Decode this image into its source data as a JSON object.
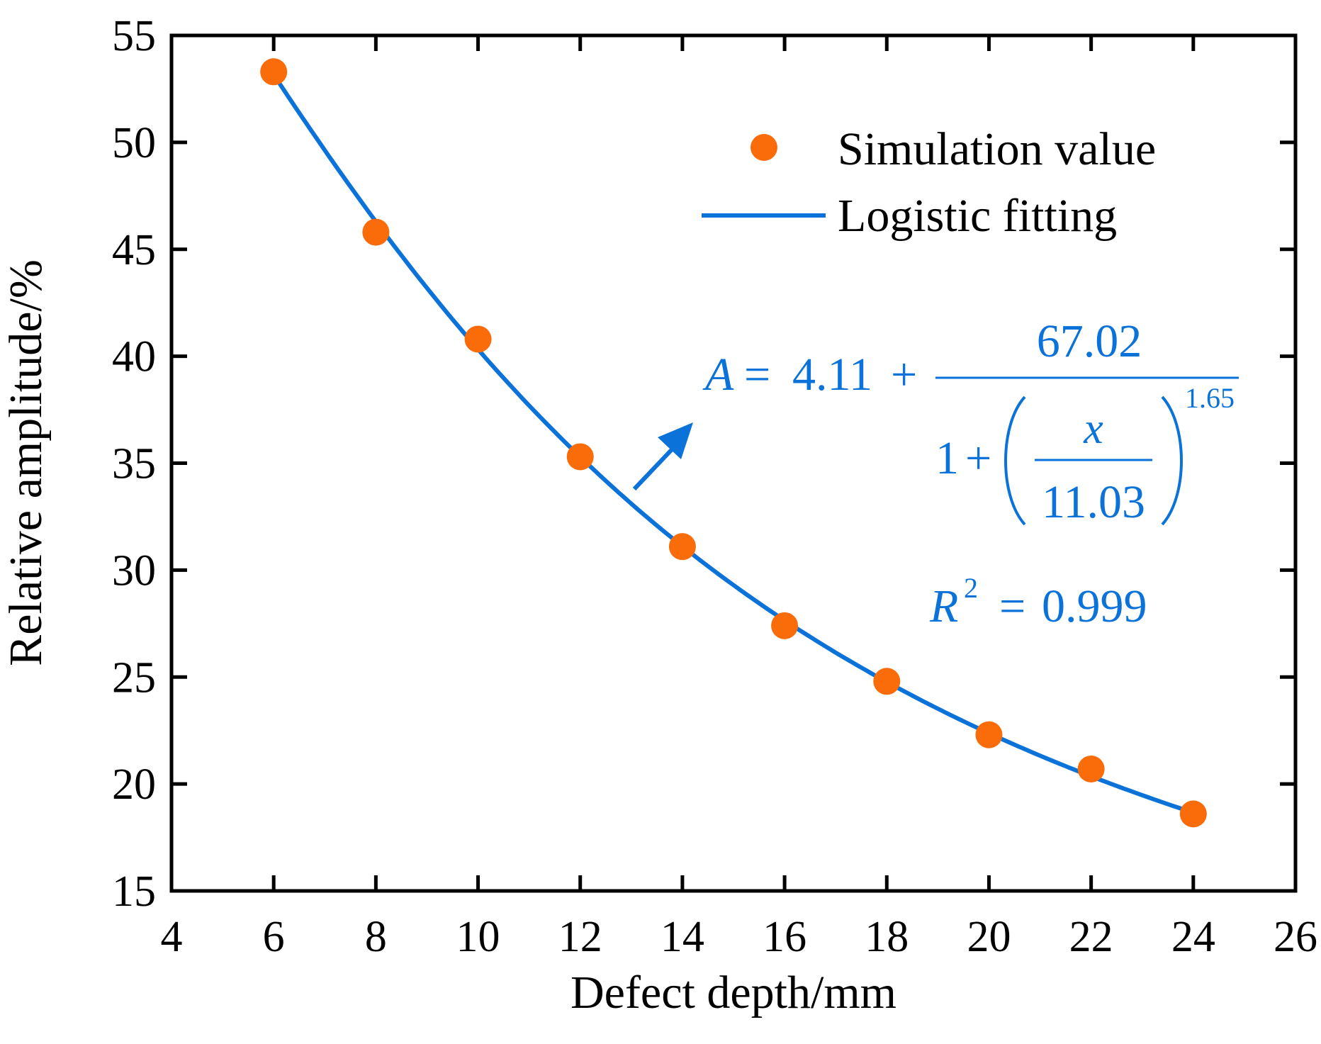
{
  "chart_data": {
    "type": "scatter",
    "title": "",
    "xlabel": "Defect depth/mm",
    "ylabel": "Relative amplitude/%",
    "xlim": [
      4,
      26
    ],
    "ylim": [
      15,
      55
    ],
    "xticks": [
      "4",
      "6",
      "8",
      "10",
      "12",
      "14",
      "16",
      "18",
      "20",
      "22",
      "24",
      "26"
    ],
    "yticks": [
      "15",
      "20",
      "25",
      "30",
      "35",
      "40",
      "45",
      "50",
      "55"
    ],
    "grid": false,
    "legend_position": "top-right",
    "series": [
      {
        "name": "Simulation value",
        "kind": "scatter",
        "color": "#fa6b0a",
        "x": [
          6,
          8,
          10,
          12,
          14,
          16,
          18,
          20,
          22,
          24
        ],
        "y": [
          53.3,
          45.8,
          40.8,
          35.3,
          31.1,
          27.4,
          24.8,
          22.3,
          20.7,
          18.6
        ]
      },
      {
        "name": "Logistic fitting",
        "kind": "line",
        "color": "#0a72d8",
        "model": {
          "A1": 4.11,
          "A2": 67.02,
          "x0": 11.03,
          "p": 1.65
        },
        "x_range": [
          6,
          24
        ]
      }
    ],
    "annotation": {
      "lhs": "A",
      "equals": "=",
      "constant": "4.11",
      "plus": "+",
      "numerator": "67.02",
      "denominator_one": "1",
      "denominator_plus": "+",
      "fraction_variable": "x",
      "fraction_divisor": "11.03",
      "exponent": "1.65",
      "r2_symbol": "R",
      "r2_power": "2",
      "r2_equals": "=",
      "r2_value": "0.999",
      "color": "#0a72d8"
    }
  }
}
